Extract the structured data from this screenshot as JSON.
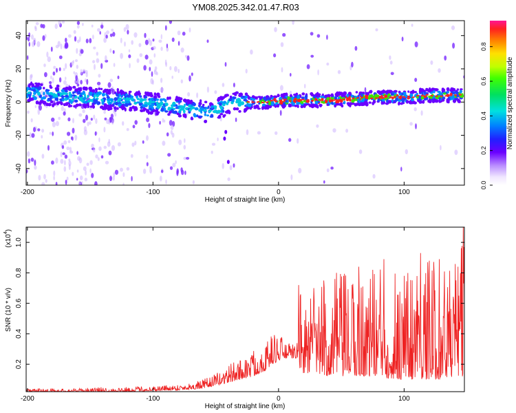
{
  "title": "YM08.2025.342.01.47.R03",
  "colors": {
    "snr_line": "#ee2222",
    "spec_fg_low": "#6a00ff",
    "spec_fg_mid": "#00e0e0",
    "spec_ridge": "#ff2020"
  },
  "chart_data": [
    {
      "type": "heatmap",
      "name": "spectrogram",
      "xlabel": "Height of straight line (km)",
      "ylabel": "Frequency (Hz)",
      "xlim": [
        -201,
        148
      ],
      "ylim": [
        -50,
        49
      ],
      "xticks": [
        -200,
        -100,
        0,
        100
      ],
      "xtick_labels": [
        "-200",
        "-100",
        "0",
        "100"
      ],
      "yticks": [
        -40,
        -20,
        0,
        20,
        40
      ],
      "ytick_labels": [
        "-40",
        "-20",
        "0",
        "20",
        "40"
      ],
      "colorbar": {
        "label": "Normalized spectral amplitude",
        "range": [
          0,
          0.95
        ],
        "ticks": [
          0,
          0.2,
          0.4,
          0.6,
          0.8
        ],
        "tick_labels": [
          "0.0",
          "0.2",
          "0.4",
          "0.6",
          "0.8"
        ]
      },
      "ridge": {
        "x": [
          -200,
          -180,
          -160,
          -140,
          -120,
          -100,
          -80,
          -65,
          -55,
          -45,
          -35,
          -25,
          -20,
          -10,
          0,
          20,
          40,
          60,
          80,
          100,
          120,
          148
        ],
        "y": [
          6,
          4,
          3,
          2,
          1,
          -1,
          -3,
          -5,
          -6,
          -3,
          0,
          0,
          0,
          0,
          1,
          1,
          1,
          2,
          3,
          3,
          4,
          4
        ]
      }
    },
    {
      "type": "line",
      "name": "snr",
      "xlabel": "Height of straight line (km)",
      "ylabel": "SNR (10 * v/v)",
      "ylabel_multiplier": "(x10",
      "ylabel_multiplier_exp": "4",
      "ylabel_multiplier_close": ")",
      "xlim": [
        -201,
        148
      ],
      "ylim": [
        0.02,
        1.1
      ],
      "xticks": [
        -200,
        -100,
        0,
        100
      ],
      "xtick_labels": [
        "-200",
        "-100",
        "0",
        "100"
      ],
      "yticks": [
        0.2,
        0.4,
        0.6,
        0.8,
        1.0
      ],
      "ytick_labels": [
        "0.2",
        "0.4",
        "0.6",
        "0.8",
        "1.0"
      ],
      "envelope": {
        "x": [
          -201,
          -160,
          -140,
          -120,
          -100,
          -80,
          -70,
          -60,
          -50,
          -45,
          -40,
          -30,
          -20,
          -10,
          -5,
          0,
          5,
          10,
          15,
          16,
          20,
          30,
          40,
          50,
          60,
          70,
          80,
          90,
          100,
          110,
          120,
          130,
          140,
          148
        ],
        "base": [
          0.02,
          0.02,
          0.02,
          0.02,
          0.025,
          0.03,
          0.035,
          0.04,
          0.06,
          0.07,
          0.08,
          0.1,
          0.12,
          0.16,
          0.2,
          0.22,
          0.24,
          0.24,
          0.24,
          0.18,
          0.14,
          0.14,
          0.12,
          0.12,
          0.12,
          0.12,
          0.12,
          0.1,
          0.1,
          0.1,
          0.1,
          0.1,
          0.12,
          0.12
        ],
        "top": [
          0.04,
          0.04,
          0.05,
          0.05,
          0.06,
          0.07,
          0.08,
          0.1,
          0.14,
          0.16,
          0.2,
          0.24,
          0.3,
          0.35,
          0.4,
          0.42,
          0.35,
          0.33,
          0.35,
          0.72,
          0.6,
          0.68,
          0.75,
          0.8,
          0.78,
          0.8,
          0.85,
          0.9,
          0.85,
          0.92,
          0.88,
          0.9,
          0.85,
          1.05
        ]
      },
      "peaks": [
        {
          "x": 16,
          "y": 0.72
        },
        {
          "x": 28,
          "y": 0.7
        },
        {
          "x": 36,
          "y": 0.75
        },
        {
          "x": 46,
          "y": 0.8
        },
        {
          "x": 52,
          "y": 0.78
        },
        {
          "x": 64,
          "y": 0.84
        },
        {
          "x": 75,
          "y": 0.82
        },
        {
          "x": 84,
          "y": 0.89
        },
        {
          "x": 100,
          "y": 0.78
        },
        {
          "x": 113,
          "y": 0.93
        },
        {
          "x": 120,
          "y": 0.88
        },
        {
          "x": 128,
          "y": 0.89
        },
        {
          "x": 143,
          "y": 0.84
        },
        {
          "x": 147,
          "y": 1.1
        }
      ]
    }
  ]
}
